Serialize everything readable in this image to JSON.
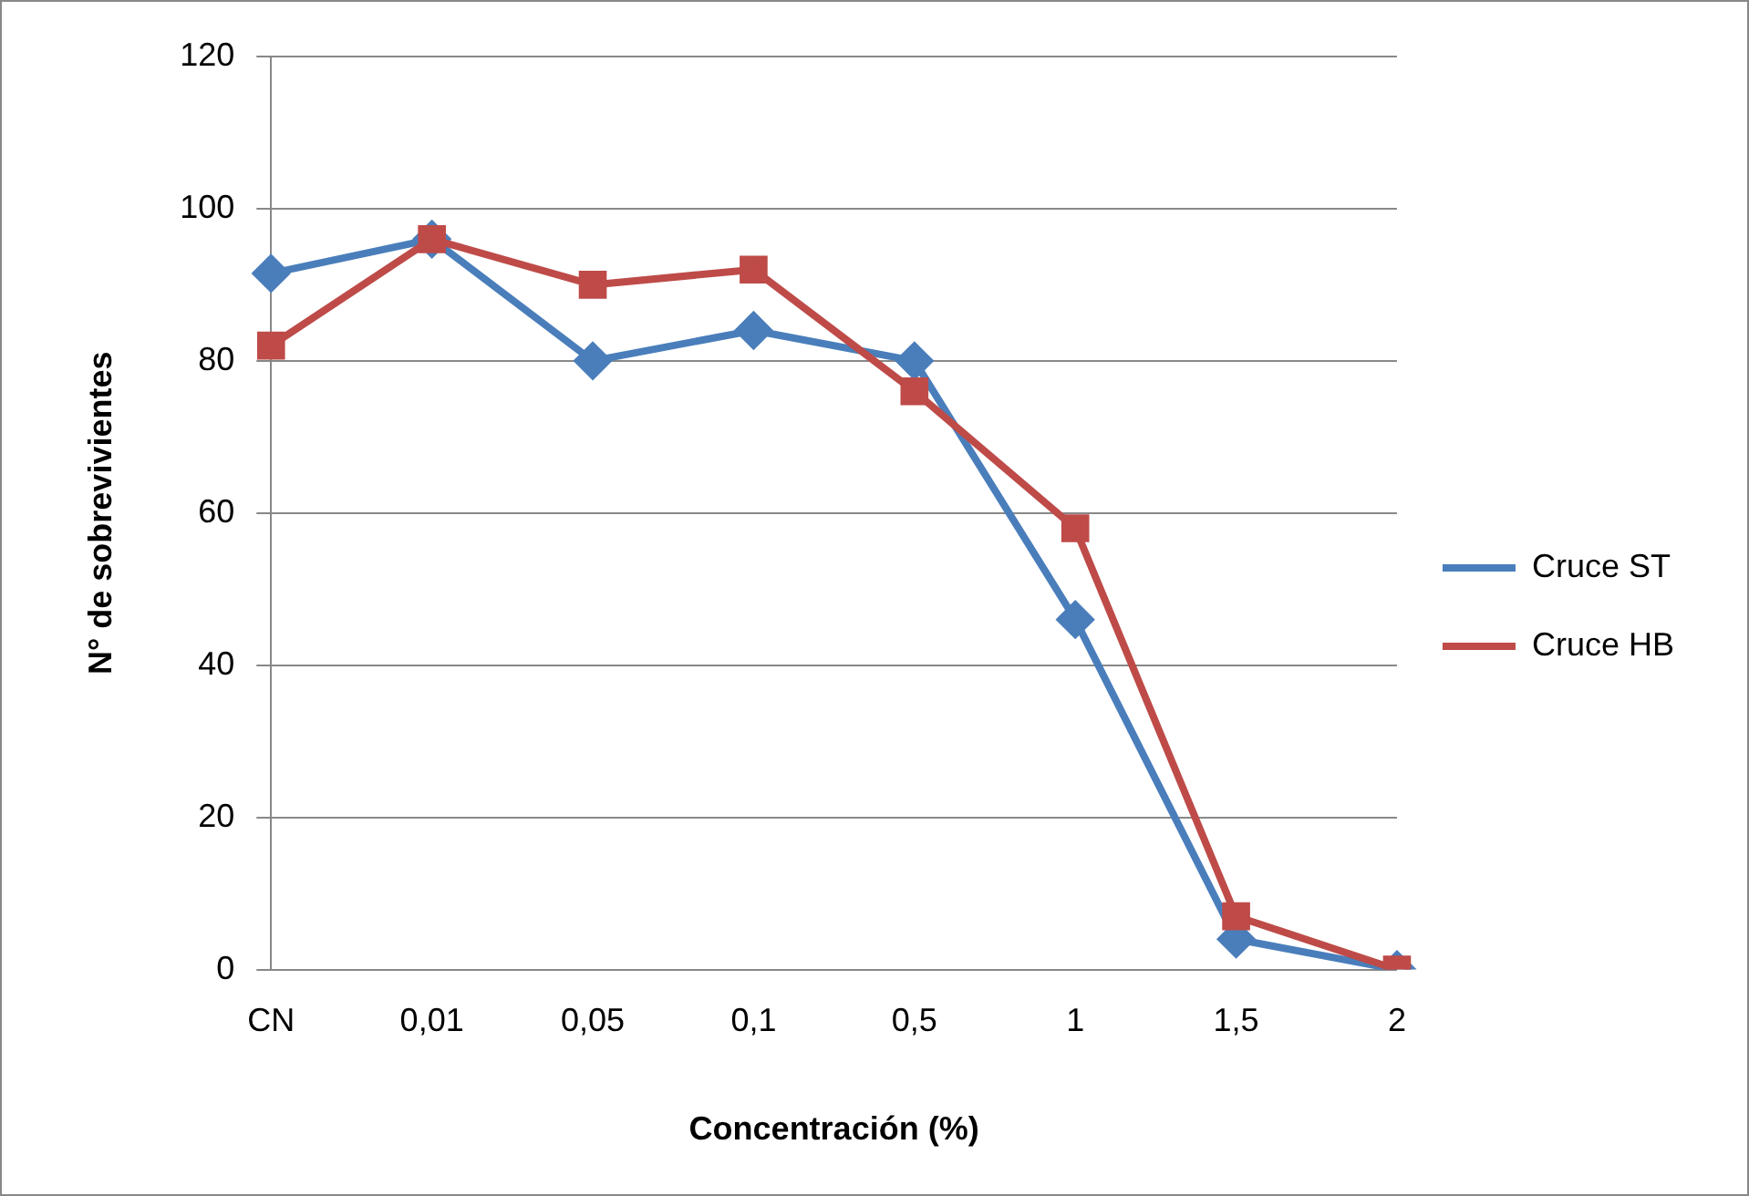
{
  "chart_data": {
    "type": "line",
    "xlabel": "Concentración (%)",
    "ylabel": "N° de sobrevivientes",
    "categories": [
      "CN",
      "0,01",
      "0,05",
      "0,1",
      "0,5",
      "1",
      "1,5",
      "2"
    ],
    "series": [
      {
        "name": "Cruce ST",
        "color": "#4a7ebb",
        "marker": "diamond",
        "values": [
          91.5,
          96,
          80,
          84,
          80,
          46,
          4,
          0
        ]
      },
      {
        "name": "Cruce HB",
        "color": "#be4b48",
        "marker": "square",
        "values": [
          82,
          96,
          90,
          92,
          76,
          58,
          7,
          0
        ]
      }
    ],
    "ylim": [
      0,
      120
    ],
    "yticks": [
      0,
      20,
      40,
      60,
      80,
      100,
      120
    ],
    "grid": "y",
    "legend": "right"
  }
}
